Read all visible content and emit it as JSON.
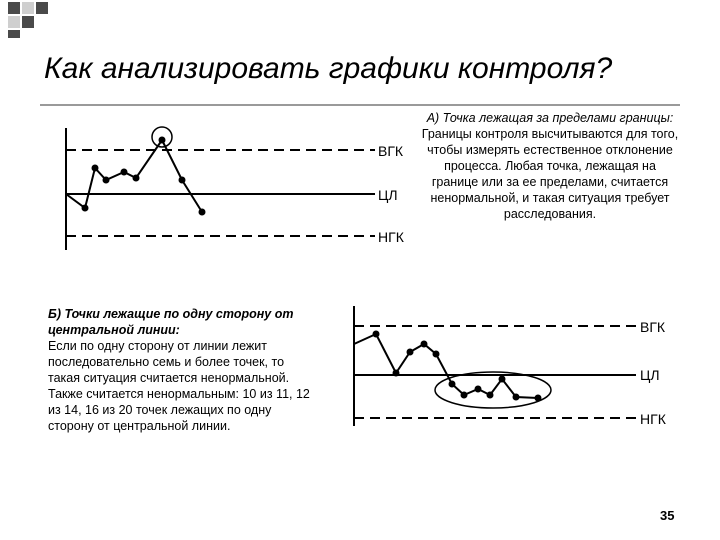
{
  "title": "Как анализировать графики контроля?",
  "chart_labels": {
    "ucl": "ВГК",
    "cl": "ЦЛ",
    "lcl": "НГК"
  },
  "section_a": {
    "heading": "А) Точка лежащая за пределами границы:",
    "body": "Границы контроля высчитываются для того, чтобы измерять естественное отклонение процесса. Любая точка, лежащая на границе или за ее пределами, считается ненормальной, и такая ситуация требует расследования."
  },
  "section_b": {
    "heading": "Б) Точки лежащие по одну сторону от центральной линии:",
    "body": "Если по одну сторону от линии лежит последовательно семь и более точек, то такая ситуация считается ненормальной. Также считается ненормальным: 10 из 11, 12 из 14, 16 из 20 точек лежащих по одну сторону от центральной линии."
  },
  "page_number": "35",
  "colors": {
    "deco_square_dark": "#4a4a4a",
    "deco_square_light": "#cfcfcf",
    "rule": "#9a9a9a",
    "line": "#000000"
  }
}
